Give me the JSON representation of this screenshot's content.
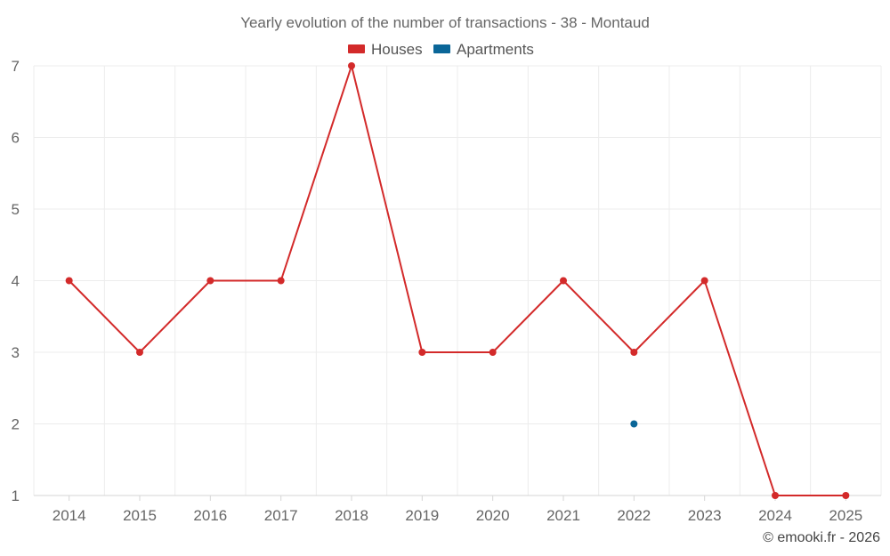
{
  "chart_data": {
    "type": "line",
    "title": "Yearly evolution of the number of transactions - 38 - Montaud",
    "categories": [
      "2014",
      "2015",
      "2016",
      "2017",
      "2018",
      "2019",
      "2020",
      "2021",
      "2022",
      "2023",
      "2024",
      "2025"
    ],
    "series": [
      {
        "name": "Houses",
        "color": "#d32a2a",
        "values": [
          4,
          3,
          4,
          4,
          7,
          3,
          3,
          4,
          3,
          4,
          1,
          1
        ]
      },
      {
        "name": "Apartments",
        "color": "#0a6698",
        "values": [
          null,
          null,
          null,
          null,
          null,
          null,
          null,
          null,
          2,
          null,
          null,
          null
        ]
      }
    ],
    "yticks": [
      1,
      2,
      3,
      4,
      5,
      6,
      7
    ],
    "ylim": [
      1,
      7
    ],
    "xlabel": "",
    "ylabel": "",
    "grid": true,
    "legend_position": "top-center"
  },
  "credit": "© emooki.fr - 2026"
}
